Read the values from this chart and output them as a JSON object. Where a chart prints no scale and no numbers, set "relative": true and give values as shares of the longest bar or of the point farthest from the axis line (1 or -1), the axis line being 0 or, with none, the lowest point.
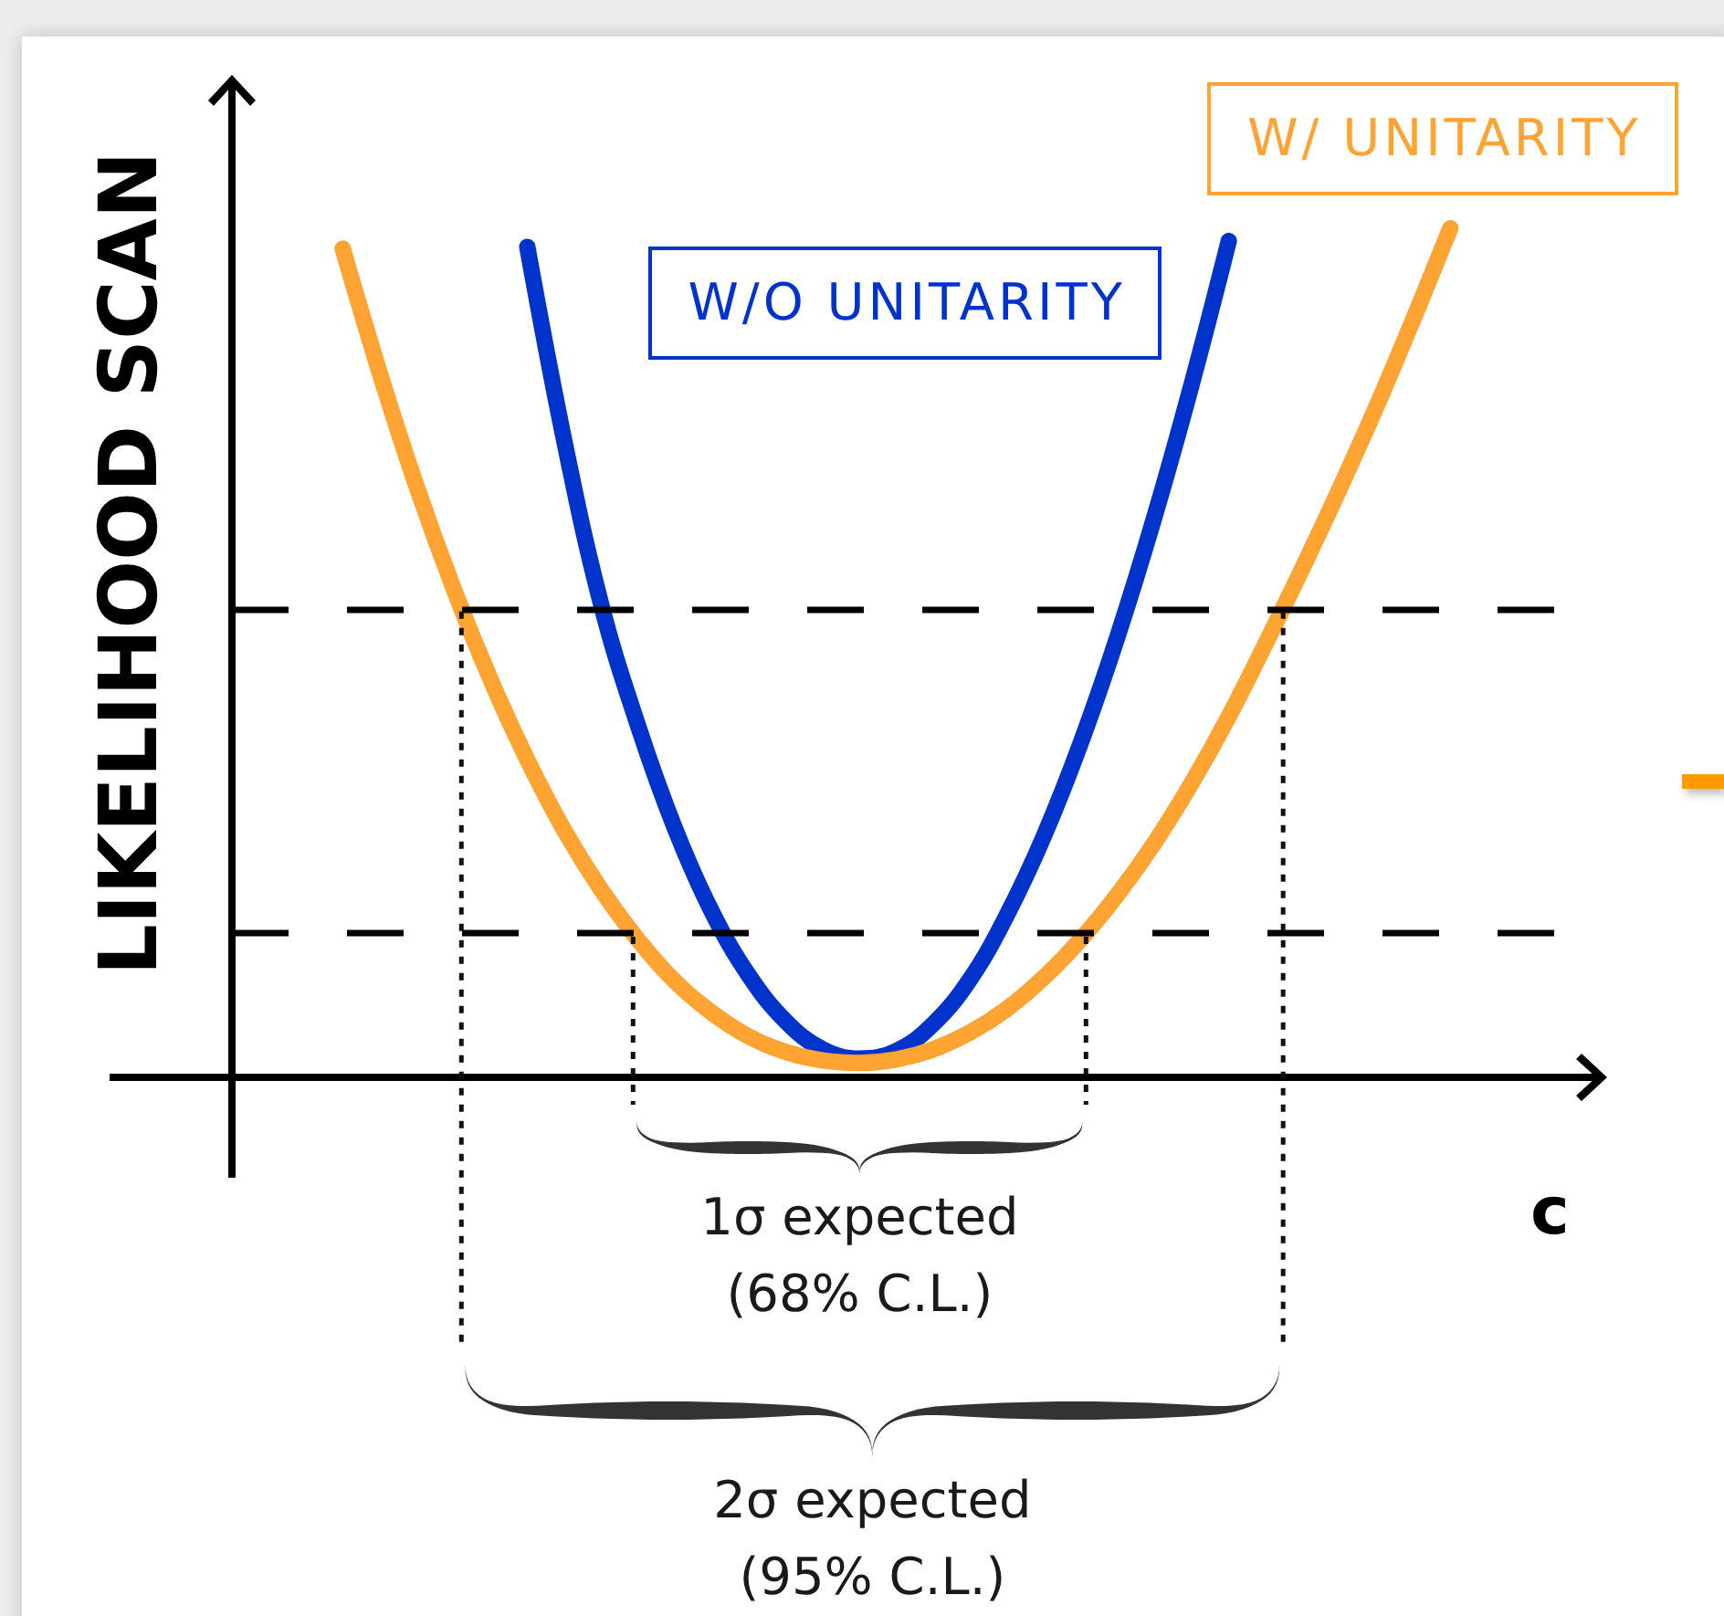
{
  "chart_data": {
    "type": "line",
    "relative": true,
    "ylabel": "LIKELIHOOD SCAN",
    "xlabel": "c",
    "categories": [
      null,
      null,
      null,
      null,
      null,
      null,
      null,
      null,
      null,
      null,
      null,
      null,
      null,
      null,
      null,
      null,
      null,
      null,
      null,
      null,
      null,
      null,
      null,
      null,
      null,
      null,
      null,
      null,
      null,
      null,
      null,
      null,
      null,
      null,
      null,
      null,
      null,
      null
    ],
    "series": [
      {
        "name": "W/O UNITARITY",
        "color": "#0033cc",
        "values": [
          null,
          null,
          null,
          null,
          null,
          null,
          null,
          null,
          0.978,
          0.75,
          0.557,
          0.414,
          0.293,
          0.195,
          0.12,
          0.066,
          0.033,
          0.022,
          0.031,
          0.063,
          0.116,
          0.192,
          0.285,
          0.395,
          0.521,
          0.662,
          0.817,
          0.985,
          null,
          null,
          null,
          null,
          null,
          null,
          null,
          null,
          null,
          null
        ]
      },
      {
        "name": "W/ UNITARITY",
        "color": "#ffa333",
        "values": [
          null,
          null,
          null,
          0.976,
          0.83,
          0.696,
          0.576,
          0.469,
          0.374,
          0.291,
          0.221,
          0.162,
          0.113,
          0.076,
          0.048,
          0.03,
          0.02,
          0.017,
          0.021,
          0.033,
          0.053,
          0.081,
          0.118,
          0.163,
          0.216,
          0.277,
          0.347,
          0.425,
          0.511,
          0.6,
          0.693,
          0.79,
          0.893,
          1,
          null,
          null,
          null,
          null
        ]
      }
    ],
    "ref_lines": [
      {
        "axis": "y",
        "value": 0.17,
        "color": "#000000",
        "line_style": "dashed"
      },
      {
        "axis": "y",
        "value": 0.553,
        "color": "#000000",
        "line_style": "dashed"
      }
    ],
    "annotations": [
      "1σ expected\n(68% C.L.)",
      "2σ expected\n(95% C.L.)"
    ]
  }
}
